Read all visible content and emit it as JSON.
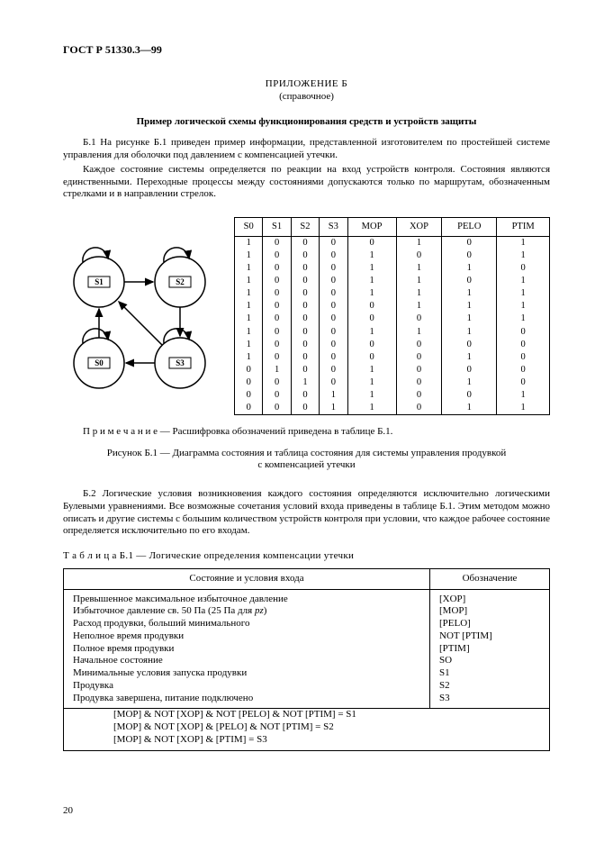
{
  "doc_id": "ГОСТ Р 51330.3—99",
  "appendix_title": "ПРИЛОЖЕНИЕ Б",
  "appendix_sub": "(справочное)",
  "section_title": "Пример логической схемы функционирования средств и устройств защиты",
  "para_b1_a": "Б.1 На рисунке Б.1 приведен пример информации, представленной изготовителем по простейшей системе управления для оболочки под давлением с компенсацией утечки.",
  "para_b1_b": "Каждое состояние системы определяется по реакции на вход устройств контроля. Состояния являются единственными. Переходные процессы между состояниями допускаются только по маршрутам, обозначенным стрелками и в направлении стрелок.",
  "state_nodes": {
    "s1": "S1",
    "s2": "S2",
    "s0": "S0",
    "s3": "S3"
  },
  "state_table": {
    "headers": [
      "S0",
      "S1",
      "S2",
      "S3",
      "MOP",
      "XOP",
      "PELO",
      "PTIM"
    ],
    "rows": [
      [
        "1",
        "0",
        "0",
        "0",
        "0",
        "1",
        "0",
        "1"
      ],
      [
        "1",
        "0",
        "0",
        "0",
        "1",
        "0",
        "0",
        "1"
      ],
      [
        "1",
        "0",
        "0",
        "0",
        "1",
        "1",
        "1",
        "0"
      ],
      [
        "1",
        "0",
        "0",
        "0",
        "1",
        "1",
        "0",
        "1"
      ],
      [
        "1",
        "0",
        "0",
        "0",
        "1",
        "1",
        "1",
        "1"
      ],
      [
        "1",
        "0",
        "0",
        "0",
        "0",
        "1",
        "1",
        "1"
      ],
      [
        "1",
        "0",
        "0",
        "0",
        "0",
        "0",
        "1",
        "1"
      ],
      [
        "1",
        "0",
        "0",
        "0",
        "1",
        "1",
        "1",
        "0"
      ],
      [
        "1",
        "0",
        "0",
        "0",
        "0",
        "0",
        "0",
        "0"
      ],
      [
        "1",
        "0",
        "0",
        "0",
        "0",
        "0",
        "1",
        "0"
      ],
      [
        "0",
        "1",
        "0",
        "0",
        "1",
        "0",
        "0",
        "0"
      ],
      [
        "0",
        "0",
        "1",
        "0",
        "1",
        "0",
        "1",
        "0"
      ],
      [
        "0",
        "0",
        "0",
        "1",
        "1",
        "0",
        "0",
        "1"
      ],
      [
        "0",
        "0",
        "0",
        "1",
        "1",
        "0",
        "1",
        "1"
      ]
    ]
  },
  "note": "П р и м е ч а н и е — Расшифровка обозначений приведена в таблице Б.1.",
  "fig_caption_l1": "Рисунок Б.1 — Диаграмма состояния и таблица состояния для системы управления продувкой",
  "fig_caption_l2": "с компенсацией утечки",
  "para_b2": "Б.2 Логические условия возникновения каждого состояния определяются исключительно логическими Булевыми уравнениями. Все возможные сочетания условий входа приведены в таблице Б.1. Этим методом можно описать и другие системы с большим количеством устройств контроля при условии, что каждое рабочее состояние определяется исключительно по его входам.",
  "table_b1_title": "Т а б л и ц а   Б.1 — Логические определения компенсации утечки",
  "defs_headers": [
    "Состояние и условия входа",
    "Обозначение"
  ],
  "defs_rows": [
    [
      "Превышенное максимальное избыточное давление",
      "[XOP]"
    ],
    [
      "Избыточное давление св. 50 Па (25 Па для pz)",
      "[MOP]"
    ],
    [
      "Расход продувки, больший минимального",
      "[PELO]"
    ],
    [
      "Неполное время продувки",
      "NOT [PTIM]"
    ],
    [
      "Полное время продувки",
      "[PTIM]"
    ],
    [
      "Начальное состояние",
      "SO"
    ],
    [
      "Минимальные условия запуска продувки",
      "S1"
    ],
    [
      "Продувка",
      "S2"
    ],
    [
      "Продувка завершена, питание подключено",
      "S3"
    ]
  ],
  "equations": [
    "[MOP] & NOT [XOP] & NOT [PELO] & NOT [PTIM] = S1",
    "[MOP] & NOT [XOP] & [PELO] & NOT [PTIM] = S2",
    "[MOP] & NOT [XOP] & [PTIM] = S3"
  ],
  "page_number": "20",
  "colors": {
    "text": "#000000",
    "bg": "#ffffff",
    "border": "#000000"
  }
}
